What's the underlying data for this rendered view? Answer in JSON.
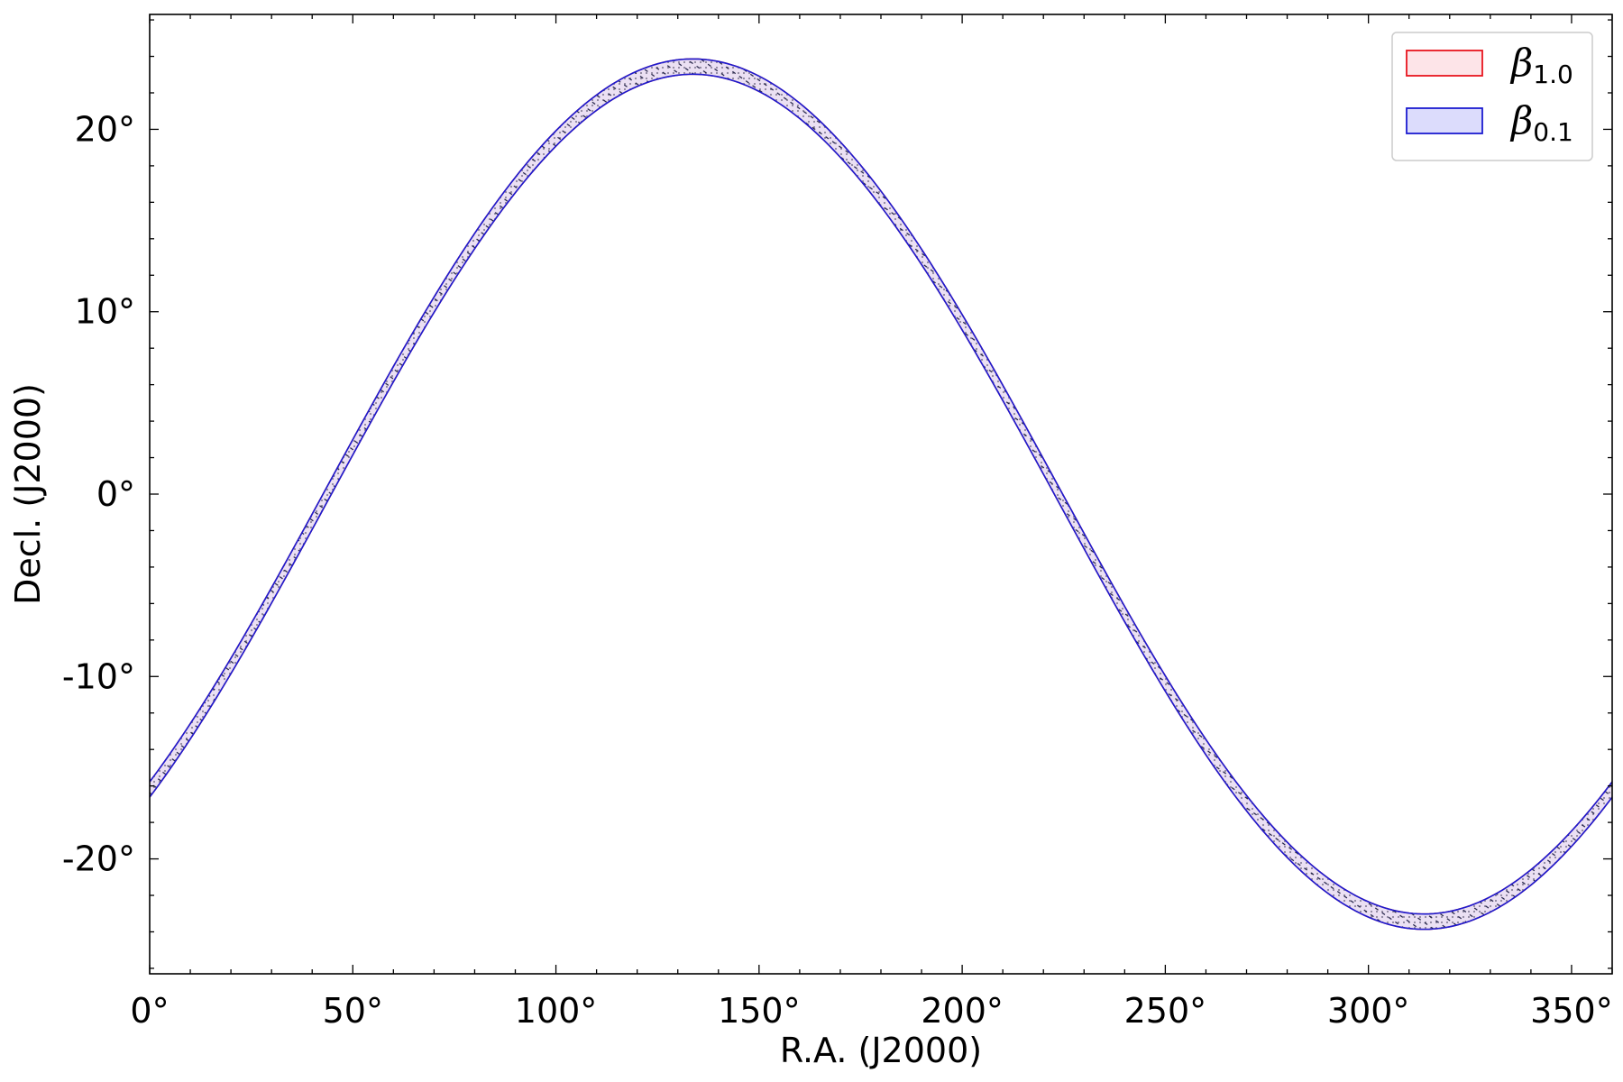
{
  "chart_data": {
    "type": "area",
    "xlabel": "R.A. (J2000)",
    "ylabel": "Decl. (J2000)",
    "xlim": [
      0,
      360
    ],
    "ylim": [
      -26.3,
      26.3
    ],
    "xticks": [
      0,
      50,
      100,
      150,
      200,
      250,
      300,
      350
    ],
    "xtick_labels": [
      "0°",
      "50°",
      "100°",
      "150°",
      "200°",
      "250°",
      "300°",
      "350°"
    ],
    "yticks": [
      -20,
      -10,
      0,
      10,
      20
    ],
    "ytick_labels": [
      "-20°",
      "-10°",
      "0°",
      "10°",
      "20°"
    ],
    "grid": false,
    "legend_position": "top-right",
    "band_model": {
      "amplitude_deg": 23.44,
      "peak_ra_deg": 133.7,
      "half_width_deg": 0.42
    },
    "series": [
      {
        "name": "β1.0",
        "symbol": "β",
        "subscript": "1.0",
        "fill": "#fde4e8",
        "edge": "#e8141e",
        "hatch": "dots"
      },
      {
        "name": "β0.1",
        "symbol": "β",
        "subscript": "0.1",
        "fill": "#dcdcfc",
        "edge": "#1b1bd0",
        "hatch": "dashes"
      }
    ]
  }
}
